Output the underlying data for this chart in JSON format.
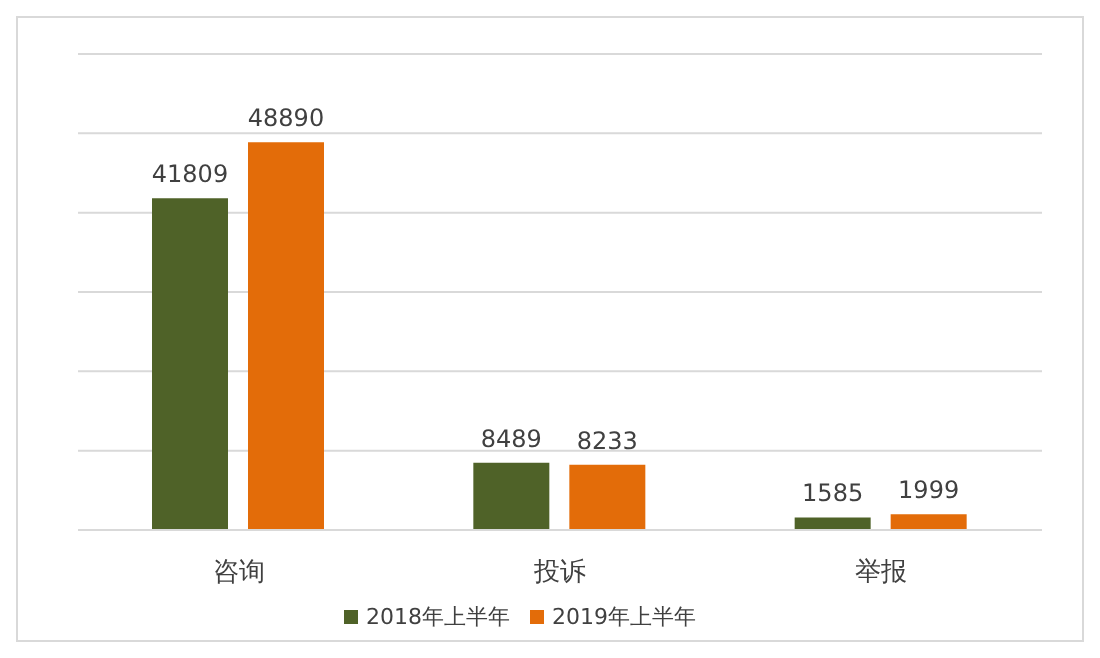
{
  "chart_data": {
    "type": "bar",
    "categories": [
      "咨询",
      "投诉",
      "举报"
    ],
    "series": [
      {
        "name": "2018年上半年",
        "color": "#4f6228",
        "values": [
          41809,
          8489,
          1585
        ]
      },
      {
        "name": "2019年上半年",
        "color": "#e36c09",
        "values": [
          48890,
          8233,
          1999
        ]
      }
    ],
    "ylim": [
      0,
      60000
    ],
    "yticks": [
      {
        "value": 0,
        "label": null
      },
      {
        "value": 10000,
        "label": null
      },
      {
        "value": 20000,
        "label": null
      },
      {
        "value": 30000,
        "label": null
      },
      {
        "value": 40000,
        "label": null
      },
      {
        "value": 50000,
        "label": null
      },
      {
        "value": 60000,
        "label": null
      }
    ],
    "tick_labels": "x",
    "grid": "y",
    "data_labels": true,
    "legend": "bottom"
  }
}
